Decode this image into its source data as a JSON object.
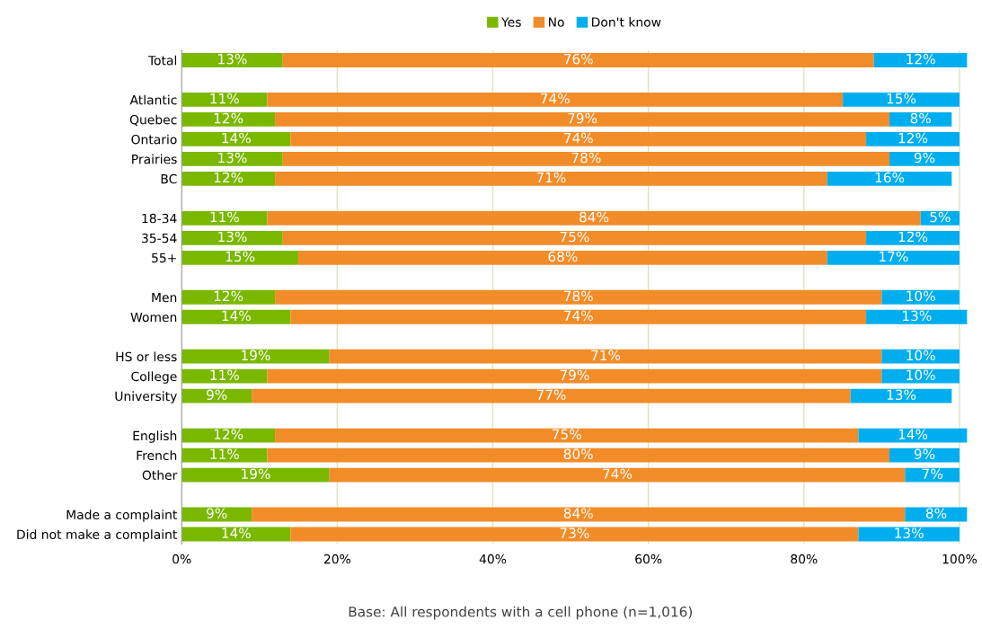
{
  "chart_data": {
    "type": "bar",
    "orientation": "horizontal",
    "stacked": true,
    "legend": "top",
    "grid": "x",
    "categories": [
      "Total",
      null,
      "Atlantic",
      "Quebec",
      "Ontario",
      "Prairies",
      "BC",
      null,
      "18-34",
      "35-54",
      "55+",
      null,
      "Men",
      "Women",
      null,
      "HS or less",
      "College",
      "University",
      null,
      "English",
      "French",
      "Other",
      null,
      "Made a complaint",
      "Did not make a complaint"
    ],
    "series": [
      {
        "name": "Yes",
        "color": "#7ab800",
        "values": [
          13,
          null,
          11,
          12,
          14,
          13,
          12,
          null,
          11,
          13,
          15,
          null,
          12,
          14,
          null,
          19,
          11,
          9,
          null,
          12,
          11,
          19,
          null,
          9,
          14
        ],
        "value_labels": [
          "13%",
          null,
          "11%",
          "12%",
          "14%",
          "13%",
          "12%",
          null,
          "11%",
          "13%",
          "15%",
          null,
          "12%",
          "14%",
          null,
          "19%",
          "11%",
          "9%",
          null,
          "12%",
          "11%",
          "19%",
          null,
          "9%",
          "14%"
        ]
      },
      {
        "name": "No",
        "color": "#f28c28",
        "values": [
          76,
          null,
          74,
          79,
          74,
          78,
          71,
          null,
          84,
          75,
          68,
          null,
          78,
          74,
          null,
          71,
          79,
          77,
          null,
          75,
          80,
          74,
          null,
          84,
          73
        ],
        "value_labels": [
          "76%",
          null,
          "74%",
          "79%",
          "74%",
          "78%",
          "71%",
          null,
          "84%",
          "75%",
          "68%",
          null,
          "78%",
          "74%",
          null,
          "71%",
          "79%",
          "77%",
          null,
          "75%",
          "80%",
          "74%",
          null,
          "84%",
          "73%"
        ]
      },
      {
        "name": "Don't know",
        "color": "#00aeef",
        "values": [
          12,
          null,
          15,
          8,
          12,
          9,
          16,
          null,
          5,
          12,
          17,
          null,
          10,
          13,
          null,
          10,
          10,
          13,
          null,
          14,
          9,
          7,
          null,
          8,
          13
        ],
        "value_labels": [
          "12%",
          null,
          "15%",
          "8%",
          "12%",
          "9%",
          "16%",
          null,
          "5%",
          "12%",
          "17%",
          null,
          "10%",
          "13%",
          null,
          "10%",
          "10%",
          "13%",
          null,
          "14%",
          "9%",
          "7%",
          null,
          "8%",
          "13%"
        ]
      }
    ],
    "xlim": [
      0,
      101
    ],
    "xticks": [
      {
        "value": 0,
        "label": "0%"
      },
      {
        "value": 20,
        "label": "20%"
      },
      {
        "value": 40,
        "label": "40%"
      },
      {
        "value": 60,
        "label": "60%"
      },
      {
        "value": 80,
        "label": "80%"
      },
      {
        "value": 100,
        "label": "100%"
      }
    ],
    "annotations": [
      "Base: All respondents with a cell phone (n=1,016)"
    ]
  }
}
